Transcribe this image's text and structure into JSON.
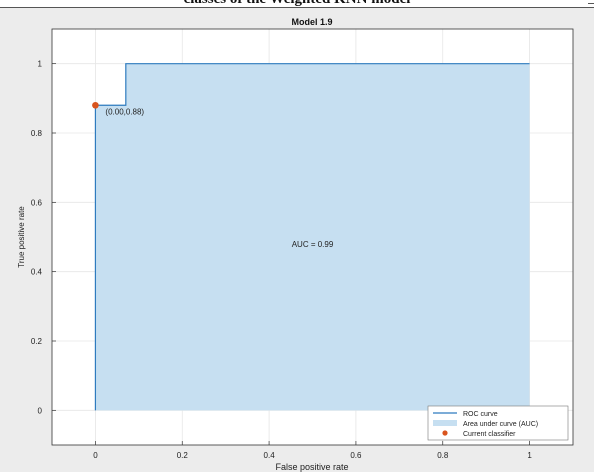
{
  "page_caption": "classes of the Weighted KNN model",
  "chart_data": {
    "type": "line",
    "title": "Model 1.9",
    "xlabel": "False positive rate",
    "ylabel": "True positive rate",
    "xlim": [
      -0.1,
      1.1
    ],
    "ylim": [
      -0.1,
      1.1
    ],
    "x_ticks": [
      0,
      0.2,
      0.4,
      0.6,
      0.8,
      1
    ],
    "x_tick_labels": [
      "0",
      "0.2",
      "0.4",
      "0.6",
      "0.8",
      "1"
    ],
    "y_ticks": [
      0,
      0.2,
      0.4,
      0.6,
      0.8,
      1
    ],
    "y_tick_labels": [
      "0",
      "0.2",
      "0.4",
      "0.6",
      "0.8",
      "1"
    ],
    "grid": true,
    "legend_position": "bottom-right",
    "series": [
      {
        "name": "ROC curve",
        "color": "#2e7bbf",
        "x": [
          0,
          0,
          0,
          0.07,
          0.07,
          1
        ],
        "y": [
          0,
          0.88,
          0.88,
          0.88,
          1,
          1
        ]
      }
    ],
    "area": {
      "name": "Area under curve (AUC)",
      "color": "#c6dff1"
    },
    "marker": {
      "name": "Current classifier",
      "x": 0.0,
      "y": 0.88,
      "color": "#d9541e",
      "label": "(0.00,0.88)"
    },
    "annotation": {
      "text": "AUC = 0.99",
      "x": 0.5,
      "y": 0.5
    }
  }
}
